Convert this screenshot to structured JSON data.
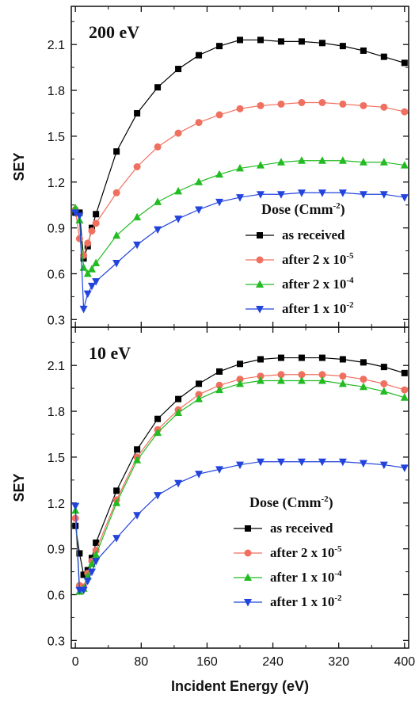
{
  "chart_data": [
    {
      "type": "line",
      "panel_label": "200 eV",
      "xlabel": "",
      "ylabel": "SEY",
      "xlim": [
        -5,
        405
      ],
      "ylim": [
        0.25,
        2.35
      ],
      "yticks": [
        0.3,
        0.6,
        0.9,
        1.2,
        1.5,
        1.8,
        2.1
      ],
      "ytick_labels": [
        "0.3",
        "0.6",
        "0.9",
        "1.2",
        "1.5",
        "1.8",
        "2.1"
      ],
      "legend_title": "Dose (Cmm",
      "legend_title_sup": "-2",
      "legend_title_end": ")",
      "legend_position": "bottom-right",
      "series": [
        {
          "name": "as received",
          "label_prefix": "as received",
          "label_sup": "",
          "color": "#000000",
          "marker": "square",
          "x": [
            0,
            5,
            10,
            15,
            20,
            25,
            50,
            75,
            100,
            125,
            150,
            175,
            200,
            225,
            250,
            275,
            300,
            325,
            350,
            375,
            400
          ],
          "y": [
            1.0,
            1.0,
            0.7,
            0.78,
            0.9,
            0.99,
            1.4,
            1.65,
            1.82,
            1.94,
            2.03,
            2.09,
            2.13,
            2.13,
            2.12,
            2.12,
            2.11,
            2.09,
            2.06,
            2.02,
            1.98
          ]
        },
        {
          "name": "after 2 x 10-5",
          "label_prefix": "after 2 x 10",
          "label_sup": "-5",
          "color": "#f07060",
          "marker": "circle",
          "x": [
            0,
            5,
            10,
            15,
            20,
            25,
            50,
            75,
            100,
            125,
            150,
            175,
            200,
            225,
            250,
            275,
            300,
            325,
            350,
            375,
            400
          ],
          "y": [
            1.02,
            0.83,
            0.72,
            0.8,
            0.88,
            0.93,
            1.13,
            1.3,
            1.43,
            1.52,
            1.59,
            1.64,
            1.68,
            1.7,
            1.71,
            1.72,
            1.72,
            1.71,
            1.7,
            1.69,
            1.66
          ]
        },
        {
          "name": "after 2 x 10-4",
          "label_prefix": "after 2 x 10",
          "label_sup": "-4",
          "color": "#22bb22",
          "marker": "triangle-up",
          "x": [
            0,
            5,
            10,
            15,
            20,
            25,
            50,
            75,
            100,
            125,
            150,
            175,
            200,
            225,
            250,
            275,
            300,
            325,
            350,
            375,
            400
          ],
          "y": [
            1.03,
            0.95,
            0.64,
            0.6,
            0.63,
            0.67,
            0.85,
            0.97,
            1.07,
            1.14,
            1.2,
            1.25,
            1.29,
            1.31,
            1.33,
            1.34,
            1.34,
            1.34,
            1.33,
            1.33,
            1.31
          ]
        },
        {
          "name": "after 1 x 10-2",
          "label_prefix": "after 1 x 10",
          "label_sup": "-2",
          "color": "#2244dd",
          "marker": "triangle-down",
          "x": [
            0,
            5,
            10,
            15,
            20,
            25,
            50,
            75,
            100,
            125,
            150,
            175,
            200,
            225,
            250,
            275,
            300,
            325,
            350,
            375,
            400
          ],
          "y": [
            1.0,
            0.98,
            0.37,
            0.47,
            0.52,
            0.55,
            0.67,
            0.79,
            0.89,
            0.96,
            1.02,
            1.07,
            1.1,
            1.12,
            1.12,
            1.13,
            1.13,
            1.13,
            1.12,
            1.12,
            1.1
          ]
        }
      ]
    },
    {
      "type": "line",
      "panel_label": "10 eV",
      "xlabel": "Incident Energy (eV)",
      "ylabel": "SEY",
      "xlim": [
        -5,
        405
      ],
      "ylim": [
        0.25,
        2.35
      ],
      "xticks": [
        0,
        80,
        160,
        240,
        320,
        400
      ],
      "xtick_labels": [
        "0",
        "80",
        "160",
        "240",
        "320",
        "400"
      ],
      "yticks": [
        0.3,
        0.6,
        0.9,
        1.2,
        1.5,
        1.8,
        2.1
      ],
      "ytick_labels": [
        "0.3",
        "0.6",
        "0.9",
        "1.2",
        "1.5",
        "1.8",
        "2.1"
      ],
      "legend_title": "Dose (Cmm",
      "legend_title_sup": "-2",
      "legend_title_end": ")",
      "legend_position": "bottom-right",
      "series": [
        {
          "name": "as received",
          "label_prefix": "as received",
          "label_sup": "",
          "color": "#000000",
          "marker": "square",
          "x": [
            0,
            5,
            10,
            15,
            20,
            25,
            50,
            75,
            100,
            125,
            150,
            175,
            200,
            225,
            250,
            275,
            300,
            325,
            350,
            375,
            400
          ],
          "y": [
            1.05,
            0.87,
            0.73,
            0.76,
            0.84,
            0.94,
            1.28,
            1.55,
            1.75,
            1.88,
            1.98,
            2.06,
            2.11,
            2.14,
            2.15,
            2.15,
            2.15,
            2.14,
            2.12,
            2.09,
            2.05
          ]
        },
        {
          "name": "after 2 x 10-5",
          "label_prefix": "after 2 x 10",
          "label_sup": "-5",
          "color": "#f07060",
          "marker": "circle",
          "x": [
            0,
            5,
            10,
            15,
            20,
            25,
            50,
            75,
            100,
            125,
            150,
            175,
            200,
            225,
            250,
            275,
            300,
            325,
            350,
            375,
            400
          ],
          "y": [
            1.1,
            0.66,
            0.65,
            0.74,
            0.82,
            0.89,
            1.22,
            1.5,
            1.68,
            1.81,
            1.91,
            1.97,
            2.01,
            2.03,
            2.04,
            2.04,
            2.04,
            2.03,
            2.01,
            1.98,
            1.94
          ]
        },
        {
          "name": "after 1 x 10-4",
          "label_prefix": "after 1 x 10",
          "label_sup": "-4",
          "color": "#22bb22",
          "marker": "triangle-up",
          "x": [
            0,
            5,
            10,
            15,
            20,
            25,
            50,
            75,
            100,
            125,
            150,
            175,
            200,
            225,
            250,
            275,
            300,
            325,
            350,
            375,
            400
          ],
          "y": [
            1.15,
            0.62,
            0.64,
            0.72,
            0.8,
            0.86,
            1.2,
            1.48,
            1.66,
            1.79,
            1.88,
            1.94,
            1.98,
            2.0,
            2.0,
            2.0,
            2.0,
            1.98,
            1.96,
            1.93,
            1.89
          ]
        },
        {
          "name": "after 1 x 10-2",
          "label_prefix": "after 1 x 10",
          "label_sup": "-2",
          "color": "#2244dd",
          "marker": "triangle-down",
          "x": [
            0,
            5,
            10,
            15,
            20,
            25,
            50,
            75,
            100,
            125,
            150,
            175,
            200,
            225,
            250,
            275,
            300,
            325,
            350,
            375,
            400
          ],
          "y": [
            1.18,
            0.63,
            0.63,
            0.69,
            0.75,
            0.82,
            0.97,
            1.12,
            1.25,
            1.33,
            1.39,
            1.42,
            1.45,
            1.47,
            1.47,
            1.47,
            1.47,
            1.47,
            1.46,
            1.45,
            1.43
          ]
        }
      ]
    }
  ]
}
